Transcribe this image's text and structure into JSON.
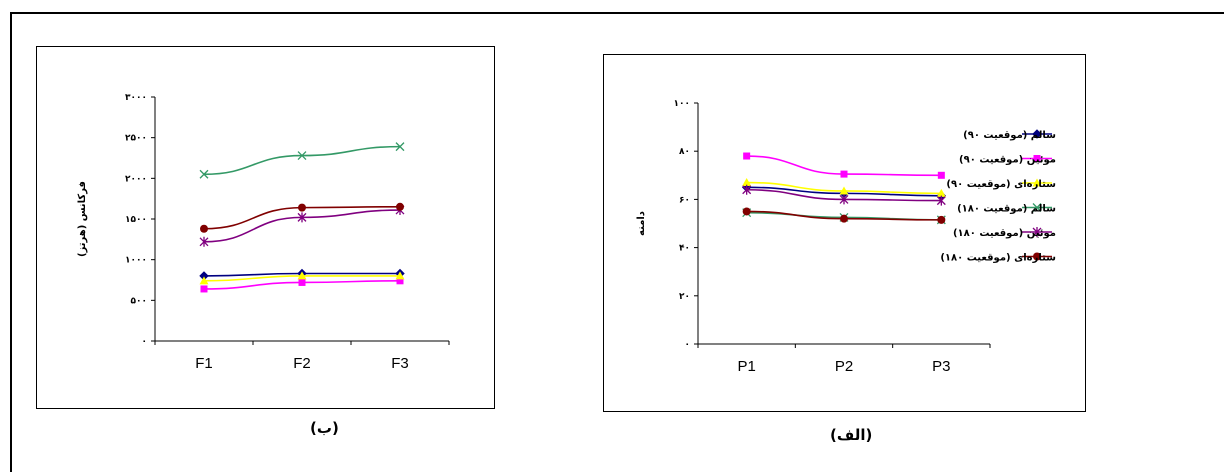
{
  "captions": {
    "left": "(ب)",
    "right": "(الف)"
  },
  "chart_data": [
    {
      "type": "line",
      "panel": "ب",
      "categories": [
        "F1",
        "F2",
        "F3"
      ],
      "ylabel": "فرکانس (هرتز)",
      "ylim": [
        0,
        3000
      ],
      "yticks": [
        "۰",
        "۵۰۰",
        "۱۰۰۰",
        "۱۵۰۰",
        "۲۰۰۰",
        "۲۵۰۰",
        "۳۰۰۰"
      ],
      "grid": false,
      "series": [
        {
          "name": "سالم (موقعیت ۹۰)",
          "color": "#000080",
          "marker": "diamond",
          "values": [
            800,
            830,
            830
          ]
        },
        {
          "name": "موئین (موقعیت ۹۰)",
          "color": "#FF00FF",
          "marker": "square",
          "values": [
            640,
            720,
            740
          ]
        },
        {
          "name": "ستاره‌ای (موقعیت ۹۰)",
          "color": "#FFFF00",
          "marker": "triangle",
          "values": [
            740,
            800,
            800
          ]
        },
        {
          "name": "سالم (موقعیت ۱۸۰)",
          "color": "#339966",
          "marker": "x",
          "values": [
            2050,
            2280,
            2390
          ]
        },
        {
          "name": "موئین (موقعیت ۱۸۰)",
          "color": "#800080",
          "marker": "star",
          "values": [
            1220,
            1520,
            1610
          ]
        },
        {
          "name": "ستاره‌ای (موقعیت ۱۸۰)",
          "color": "#800000",
          "marker": "circle",
          "values": [
            1380,
            1640,
            1650
          ]
        }
      ]
    },
    {
      "type": "line",
      "panel": "الف",
      "categories": [
        "P1",
        "P2",
        "P3"
      ],
      "ylabel": "دامنه",
      "ylim": [
        0,
        100
      ],
      "yticks": [
        "۰",
        "۲۰",
        "۴۰",
        "۶۰",
        "۸۰",
        "۱۰۰"
      ],
      "grid": false,
      "legend": "right",
      "series": [
        {
          "name": "سالم (موقعیت ۹۰)",
          "color": "#000080",
          "marker": "diamond",
          "values": [
            65,
            62.5,
            61.5
          ]
        },
        {
          "name": "موئین (موقعیت ۹۰)",
          "color": "#FF00FF",
          "marker": "square",
          "values": [
            78,
            70.5,
            70
          ]
        },
        {
          "name": "ستاره‌ای (موقعیت ۹۰)",
          "color": "#FFFF00",
          "marker": "triangle",
          "values": [
            67,
            63.5,
            62.5
          ]
        },
        {
          "name": "سالم (موقعیت ۱۸۰)",
          "color": "#339966",
          "marker": "x",
          "values": [
            54.5,
            52.5,
            51.5
          ]
        },
        {
          "name": "موئین (موقعیت ۱۸۰)",
          "color": "#800080",
          "marker": "star",
          "values": [
            64,
            60,
            59.5
          ]
        },
        {
          "name": "ستاره‌ای (موقعیت ۱۸۰)",
          "color": "#800000",
          "marker": "circle",
          "values": [
            55,
            52,
            51.5
          ]
        }
      ]
    }
  ]
}
